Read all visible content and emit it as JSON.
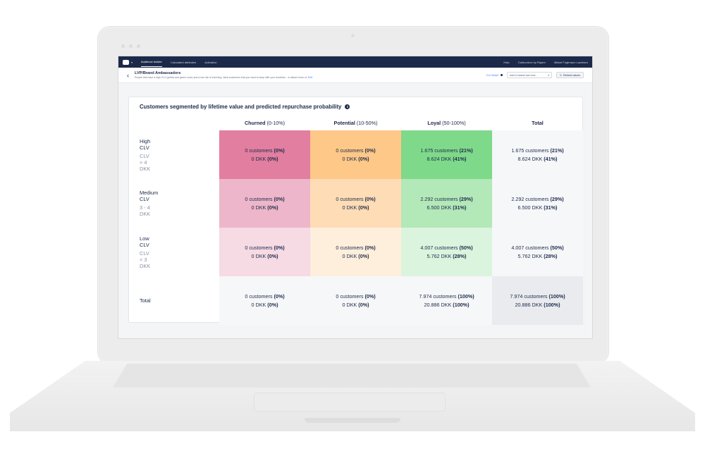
{
  "navbar": {
    "links": [
      "Audience builder",
      "Calculated attributes",
      "Activation"
    ],
    "right_links": [
      "Help",
      "Outdoorbox by Raptor",
      "Mikkel Fogtmann Lauritsen"
    ]
  },
  "page": {
    "title": "LVP/Brand Ambassadors",
    "description": "People that have a high CLV (yellow and green zone) and a low risk of churning. Ideal customers that you want to keep with your business - or attract more of.",
    "edit_link": "Edit",
    "clv_model_label": "CLV Model",
    "select_value": "Add to basket last reve...",
    "refresh_label": "Refresh values"
  },
  "card": {
    "title": "Customers segmented by lifetime value and predicted repurchase probability"
  },
  "columns": [
    {
      "name": "Churned",
      "range": "(0-10%)"
    },
    {
      "name": "Potential",
      "range": "(10-50%)"
    },
    {
      "name": "Loyal",
      "range": "(50-100%)"
    },
    {
      "name": "Total",
      "range": ""
    }
  ],
  "rows": [
    {
      "label": "High CLV",
      "sub": "CLV > 4 DKK",
      "cells": [
        {
          "c": "0 customers",
          "cp": "(0%)",
          "d": "0 DKK",
          "dp": "(0%)",
          "bg": "#e27e9f"
        },
        {
          "c": "0 customers",
          "cp": "(0%)",
          "d": "0 DKK",
          "dp": "(0%)",
          "bg": "#fdc888"
        },
        {
          "c": "1.675 customers",
          "cp": "(21%)",
          "d": "8.624 DKK",
          "dp": "(41%)",
          "bg": "#7fd98a"
        },
        {
          "c": "1.675 customers",
          "cp": "(21%)",
          "d": "8.624 DKK",
          "dp": "(41%)",
          "bg": "#f6f7f9"
        }
      ]
    },
    {
      "label": "Medium CLV",
      "sub": "3 - 4 DKK",
      "cells": [
        {
          "c": "0 customers",
          "cp": "(0%)",
          "d": "0 DKK",
          "dp": "(0%)",
          "bg": "#eeb6ca"
        },
        {
          "c": "0 customers",
          "cp": "(0%)",
          "d": "0 DKK",
          "dp": "(0%)",
          "bg": "#fedcb6"
        },
        {
          "c": "2.292 customers",
          "cp": "(29%)",
          "d": "6.500 DKK",
          "dp": "(31%)",
          "bg": "#b3e8b9"
        },
        {
          "c": "2.292 customers",
          "cp": "(29%)",
          "d": "6.500 DKK",
          "dp": "(31%)",
          "bg": "#f6f7f9"
        }
      ]
    },
    {
      "label": "Low CLV",
      "sub": "CLV < 3 DKK",
      "cells": [
        {
          "c": "0 customers",
          "cp": "(0%)",
          "d": "0 DKK",
          "dp": "(0%)",
          "bg": "#f6dae4"
        },
        {
          "c": "0 customers",
          "cp": "(0%)",
          "d": "0 DKK",
          "dp": "(0%)",
          "bg": "#feeedc"
        },
        {
          "c": "4.007 customers",
          "cp": "(50%)",
          "d": "5.762 DKK",
          "dp": "(28%)",
          "bg": "#dbf4de"
        },
        {
          "c": "4.007 customers",
          "cp": "(50%)",
          "d": "5.762 DKK",
          "dp": "(28%)",
          "bg": "#f6f7f9"
        }
      ]
    },
    {
      "label": "Total",
      "sub": "",
      "cells": [
        {
          "c": "0 customers",
          "cp": "(0%)",
          "d": "0 DKK",
          "dp": "(0%)",
          "bg": "#f6f7f9"
        },
        {
          "c": "0 customers",
          "cp": "(0%)",
          "d": "0 DKK",
          "dp": "(0%)",
          "bg": "#f6f7f9"
        },
        {
          "c": "7.974 customers",
          "cp": "(100%)",
          "d": "20.886 DKK",
          "dp": "(100%)",
          "bg": "#f6f7f9"
        },
        {
          "c": "7.974 customers",
          "cp": "(100%)",
          "d": "20.886 DKK",
          "dp": "(100%)",
          "bg": "#e9ebef"
        }
      ]
    }
  ]
}
